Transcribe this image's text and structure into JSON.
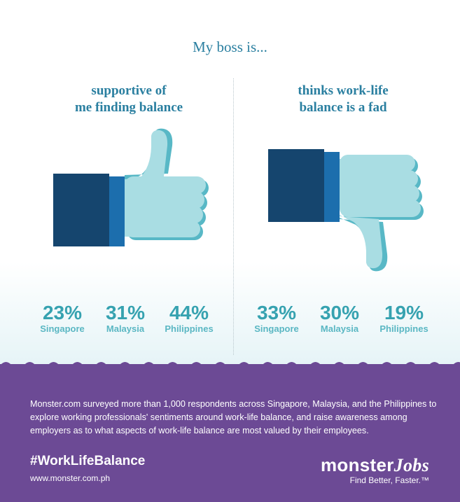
{
  "headline": "My boss is...",
  "left": {
    "title_line1": "supportive of",
    "title_line2": "me finding balance",
    "stats": [
      {
        "percent": "23%",
        "country": "Singapore"
      },
      {
        "percent": "31%",
        "country": "Malaysia"
      },
      {
        "percent": "44%",
        "country": "Philippines"
      }
    ]
  },
  "right": {
    "title_line1": "thinks work-life",
    "title_line2": "balance is a fad",
    "stats": [
      {
        "percent": "33%",
        "country": "Singapore"
      },
      {
        "percent": "30%",
        "country": "Malaysia"
      },
      {
        "percent": "19%",
        "country": "Philippines"
      }
    ]
  },
  "footer": {
    "description": "Monster.com surveyed more than 1,000 respondents across Singapore, Malaysia, and the Philippines to explore working professionals' sentiments around work-life balance, and raise awareness among employers as to what aspects of work-life balance are most valued by their employees.",
    "hashtag": "#WorkLifeBalance",
    "url": "www.monster.com.ph",
    "brand_main": "monster",
    "brand_jobs": "Jobs",
    "tagline": "Find Better, Faster.™"
  },
  "colors": {
    "accent_text": "#2a7fa0",
    "stat_teal": "#36a2b0",
    "sleeve_navy": "#15456e",
    "cuff_blue": "#1c6ead",
    "hand_light": "#a9dde3",
    "hand_shadow": "#58b8c6",
    "footer_purple": "#6c4a95"
  },
  "icons": [
    "thumbs-up-icon",
    "thumbs-down-icon"
  ]
}
